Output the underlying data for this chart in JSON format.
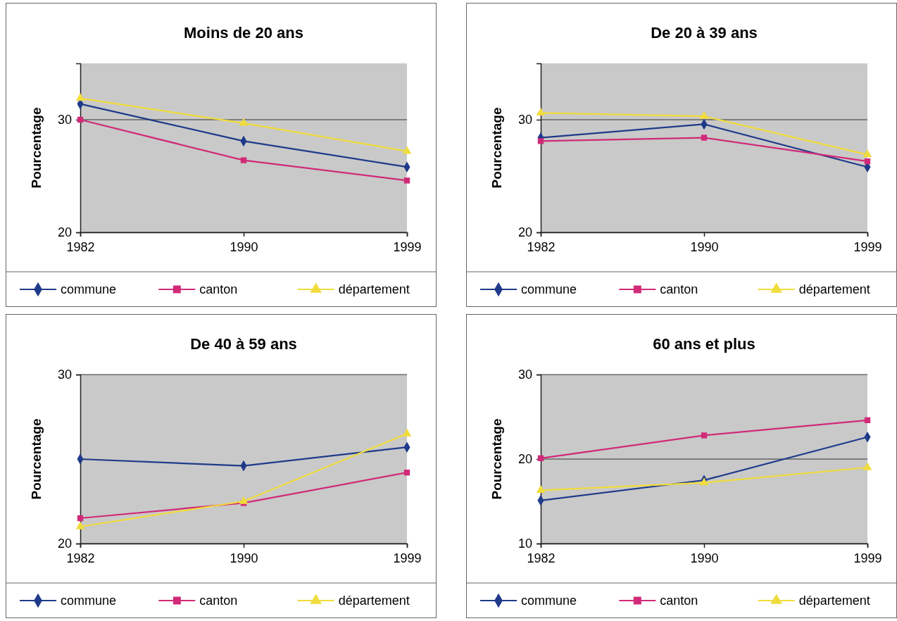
{
  "chart_data": [
    {
      "type": "line",
      "title": "Moins de 20 ans",
      "ylabel": "Pourcentage",
      "categories": [
        "1982",
        "1990",
        "1999"
      ],
      "ylim": [
        20,
        35
      ],
      "yticks": [
        20,
        30
      ],
      "grid": "y",
      "legend": "bottom",
      "series": [
        {
          "name": "commune",
          "color": "#1f3a8a",
          "marker": "diamond",
          "values": [
            31.4,
            28.1,
            25.8
          ]
        },
        {
          "name": "canton",
          "color": "#d12a78",
          "marker": "square",
          "values": [
            30.0,
            26.4,
            24.6
          ]
        },
        {
          "name": "département",
          "color": "#f0dc3c",
          "marker": "triangle",
          "values": [
            31.9,
            29.7,
            27.2
          ]
        }
      ]
    },
    {
      "type": "line",
      "title": "De 20 à 39 ans",
      "ylabel": "Pourcentage",
      "categories": [
        "1982",
        "1990",
        "1999"
      ],
      "ylim": [
        20,
        35
      ],
      "yticks": [
        20,
        30
      ],
      "grid": "y",
      "legend": "bottom",
      "series": [
        {
          "name": "commune",
          "color": "#1f3a8a",
          "marker": "diamond",
          "values": [
            28.4,
            29.6,
            25.8
          ]
        },
        {
          "name": "canton",
          "color": "#d12a78",
          "marker": "square",
          "values": [
            28.1,
            28.4,
            26.3
          ]
        },
        {
          "name": "département",
          "color": "#f0dc3c",
          "marker": "triangle",
          "values": [
            30.6,
            30.3,
            26.9
          ]
        }
      ]
    },
    {
      "type": "line",
      "title": "De 40 à 59 ans",
      "ylabel": "Pourcentage",
      "categories": [
        "1982",
        "1990",
        "1999"
      ],
      "ylim": [
        20,
        30
      ],
      "yticks": [
        20,
        30
      ],
      "grid": "y",
      "legend": "bottom",
      "series": [
        {
          "name": "commune",
          "color": "#1f3a8a",
          "marker": "diamond",
          "values": [
            25.0,
            24.6,
            25.7
          ]
        },
        {
          "name": "canton",
          "color": "#d12a78",
          "marker": "square",
          "values": [
            21.5,
            22.4,
            24.2
          ]
        },
        {
          "name": "département",
          "color": "#f0dc3c",
          "marker": "triangle",
          "values": [
            21.0,
            22.5,
            26.5
          ]
        }
      ]
    },
    {
      "type": "line",
      "title": "60 ans et plus",
      "ylabel": "Pourcentage",
      "categories": [
        "1982",
        "1990",
        "1999"
      ],
      "ylim": [
        10,
        30
      ],
      "yticks": [
        10,
        20,
        30
      ],
      "grid": "y",
      "legend": "bottom",
      "series": [
        {
          "name": "commune",
          "color": "#1f3a8a",
          "marker": "diamond",
          "values": [
            15.1,
            17.5,
            22.6
          ]
        },
        {
          "name": "canton",
          "color": "#d12a78",
          "marker": "square",
          "values": [
            20.1,
            22.8,
            24.6
          ]
        },
        {
          "name": "département",
          "color": "#f0dc3c",
          "marker": "triangle",
          "values": [
            16.3,
            17.2,
            19.0
          ]
        }
      ]
    }
  ]
}
